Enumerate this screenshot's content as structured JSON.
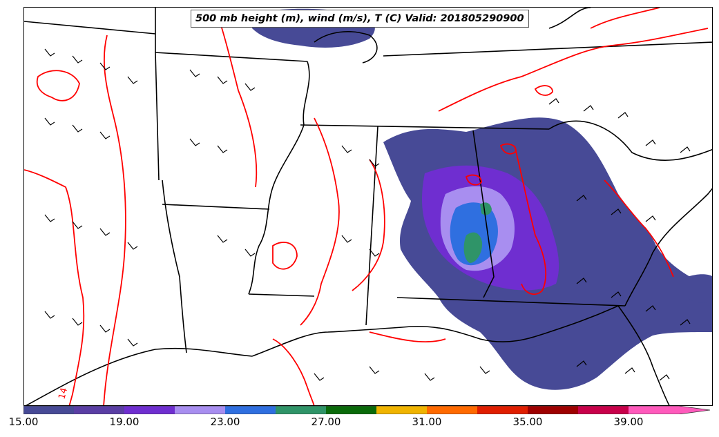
{
  "title": "500 mb height (m), wind (m/s), T (C) Valid: 201805290900",
  "contour_label": "14",
  "colorbar": {
    "colors": [
      "#474a96",
      "#5a3ea4",
      "#6f2ed0",
      "#a88ef0",
      "#2f6fe0",
      "#2f9468",
      "#0a6a0a",
      "#f0b400",
      "#ff6a00",
      "#e01e00",
      "#9e0000",
      "#c8004a",
      "#ff5abc"
    ],
    "ticks": [
      "15.00",
      "19.00",
      "23.00",
      "27.00",
      "31.00",
      "35.00",
      "39.00"
    ]
  },
  "colors": {
    "temperature_contour": "#ff0000",
    "boundaries": "#000000",
    "wind_barb": "#000000"
  }
}
